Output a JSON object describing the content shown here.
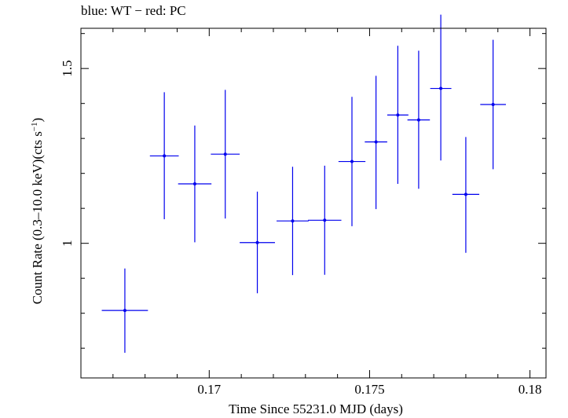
{
  "title": "blue: WT − red: PC",
  "chart_data": {
    "type": "scatter",
    "title": "blue: WT − red: PC",
    "xlabel": "Time Since 55231.0 MJD (days)",
    "ylabel_main": "Count Rate (0.3–10.0 keV)(cts s",
    "ylabel_sup": "−1",
    "ylabel_end": ")",
    "xlim": [
      0.166,
      0.1805
    ],
    "ylim": [
      0.615,
      1.615
    ],
    "x_ticks": [
      {
        "value": 0.17,
        "label": "0.17"
      },
      {
        "value": 0.175,
        "label": "0.175"
      },
      {
        "value": 0.18,
        "label": "0.18"
      }
    ],
    "y_ticks": [
      {
        "value": 1.0,
        "label": "1"
      },
      {
        "value": 1.5,
        "label": "1.5"
      }
    ],
    "x_minor_step": 0.001,
    "y_minor_step": 0.1,
    "colors": {
      "series": "#0000ee",
      "axes": "#000000"
    },
    "series": [
      {
        "color": "#0000ee",
        "points": [
          {
            "x": 0.16737,
            "xerr": 0.00072,
            "y": 0.808,
            "ylo": 0.687,
            "yhi": 0.928
          },
          {
            "x": 0.1686,
            "xerr": 0.00045,
            "y": 1.25,
            "ylo": 1.069,
            "yhi": 1.432
          },
          {
            "x": 0.16955,
            "xerr": 0.00052,
            "y": 1.17,
            "ylo": 1.003,
            "yhi": 1.337
          },
          {
            "x": 0.1705,
            "xerr": 0.00045,
            "y": 1.255,
            "ylo": 1.071,
            "yhi": 1.439
          },
          {
            "x": 0.1715,
            "xerr": 0.00055,
            "y": 1.002,
            "ylo": 0.857,
            "yhi": 1.148
          },
          {
            "x": 0.1726,
            "xerr": 0.0005,
            "y": 1.064,
            "ylo": 0.909,
            "yhi": 1.219
          },
          {
            "x": 0.1736,
            "xerr": 0.00052,
            "y": 1.066,
            "ylo": 0.91,
            "yhi": 1.222
          },
          {
            "x": 0.17445,
            "xerr": 0.00042,
            "y": 1.234,
            "ylo": 1.049,
            "yhi": 1.419
          },
          {
            "x": 0.1752,
            "xerr": 0.00035,
            "y": 1.29,
            "ylo": 1.098,
            "yhi": 1.479
          },
          {
            "x": 0.17588,
            "xerr": 0.00033,
            "y": 1.367,
            "ylo": 1.17,
            "yhi": 1.565
          },
          {
            "x": 0.17653,
            "xerr": 0.00035,
            "y": 1.353,
            "ylo": 1.156,
            "yhi": 1.551
          },
          {
            "x": 0.17722,
            "xerr": 0.00033,
            "y": 1.443,
            "ylo": 1.237,
            "yhi": 1.654
          },
          {
            "x": 0.178,
            "xerr": 0.00042,
            "y": 1.14,
            "ylo": 0.973,
            "yhi": 1.304
          },
          {
            "x": 0.17885,
            "xerr": 0.0004,
            "y": 1.397,
            "ylo": 1.212,
            "yhi": 1.582
          }
        ]
      }
    ]
  }
}
